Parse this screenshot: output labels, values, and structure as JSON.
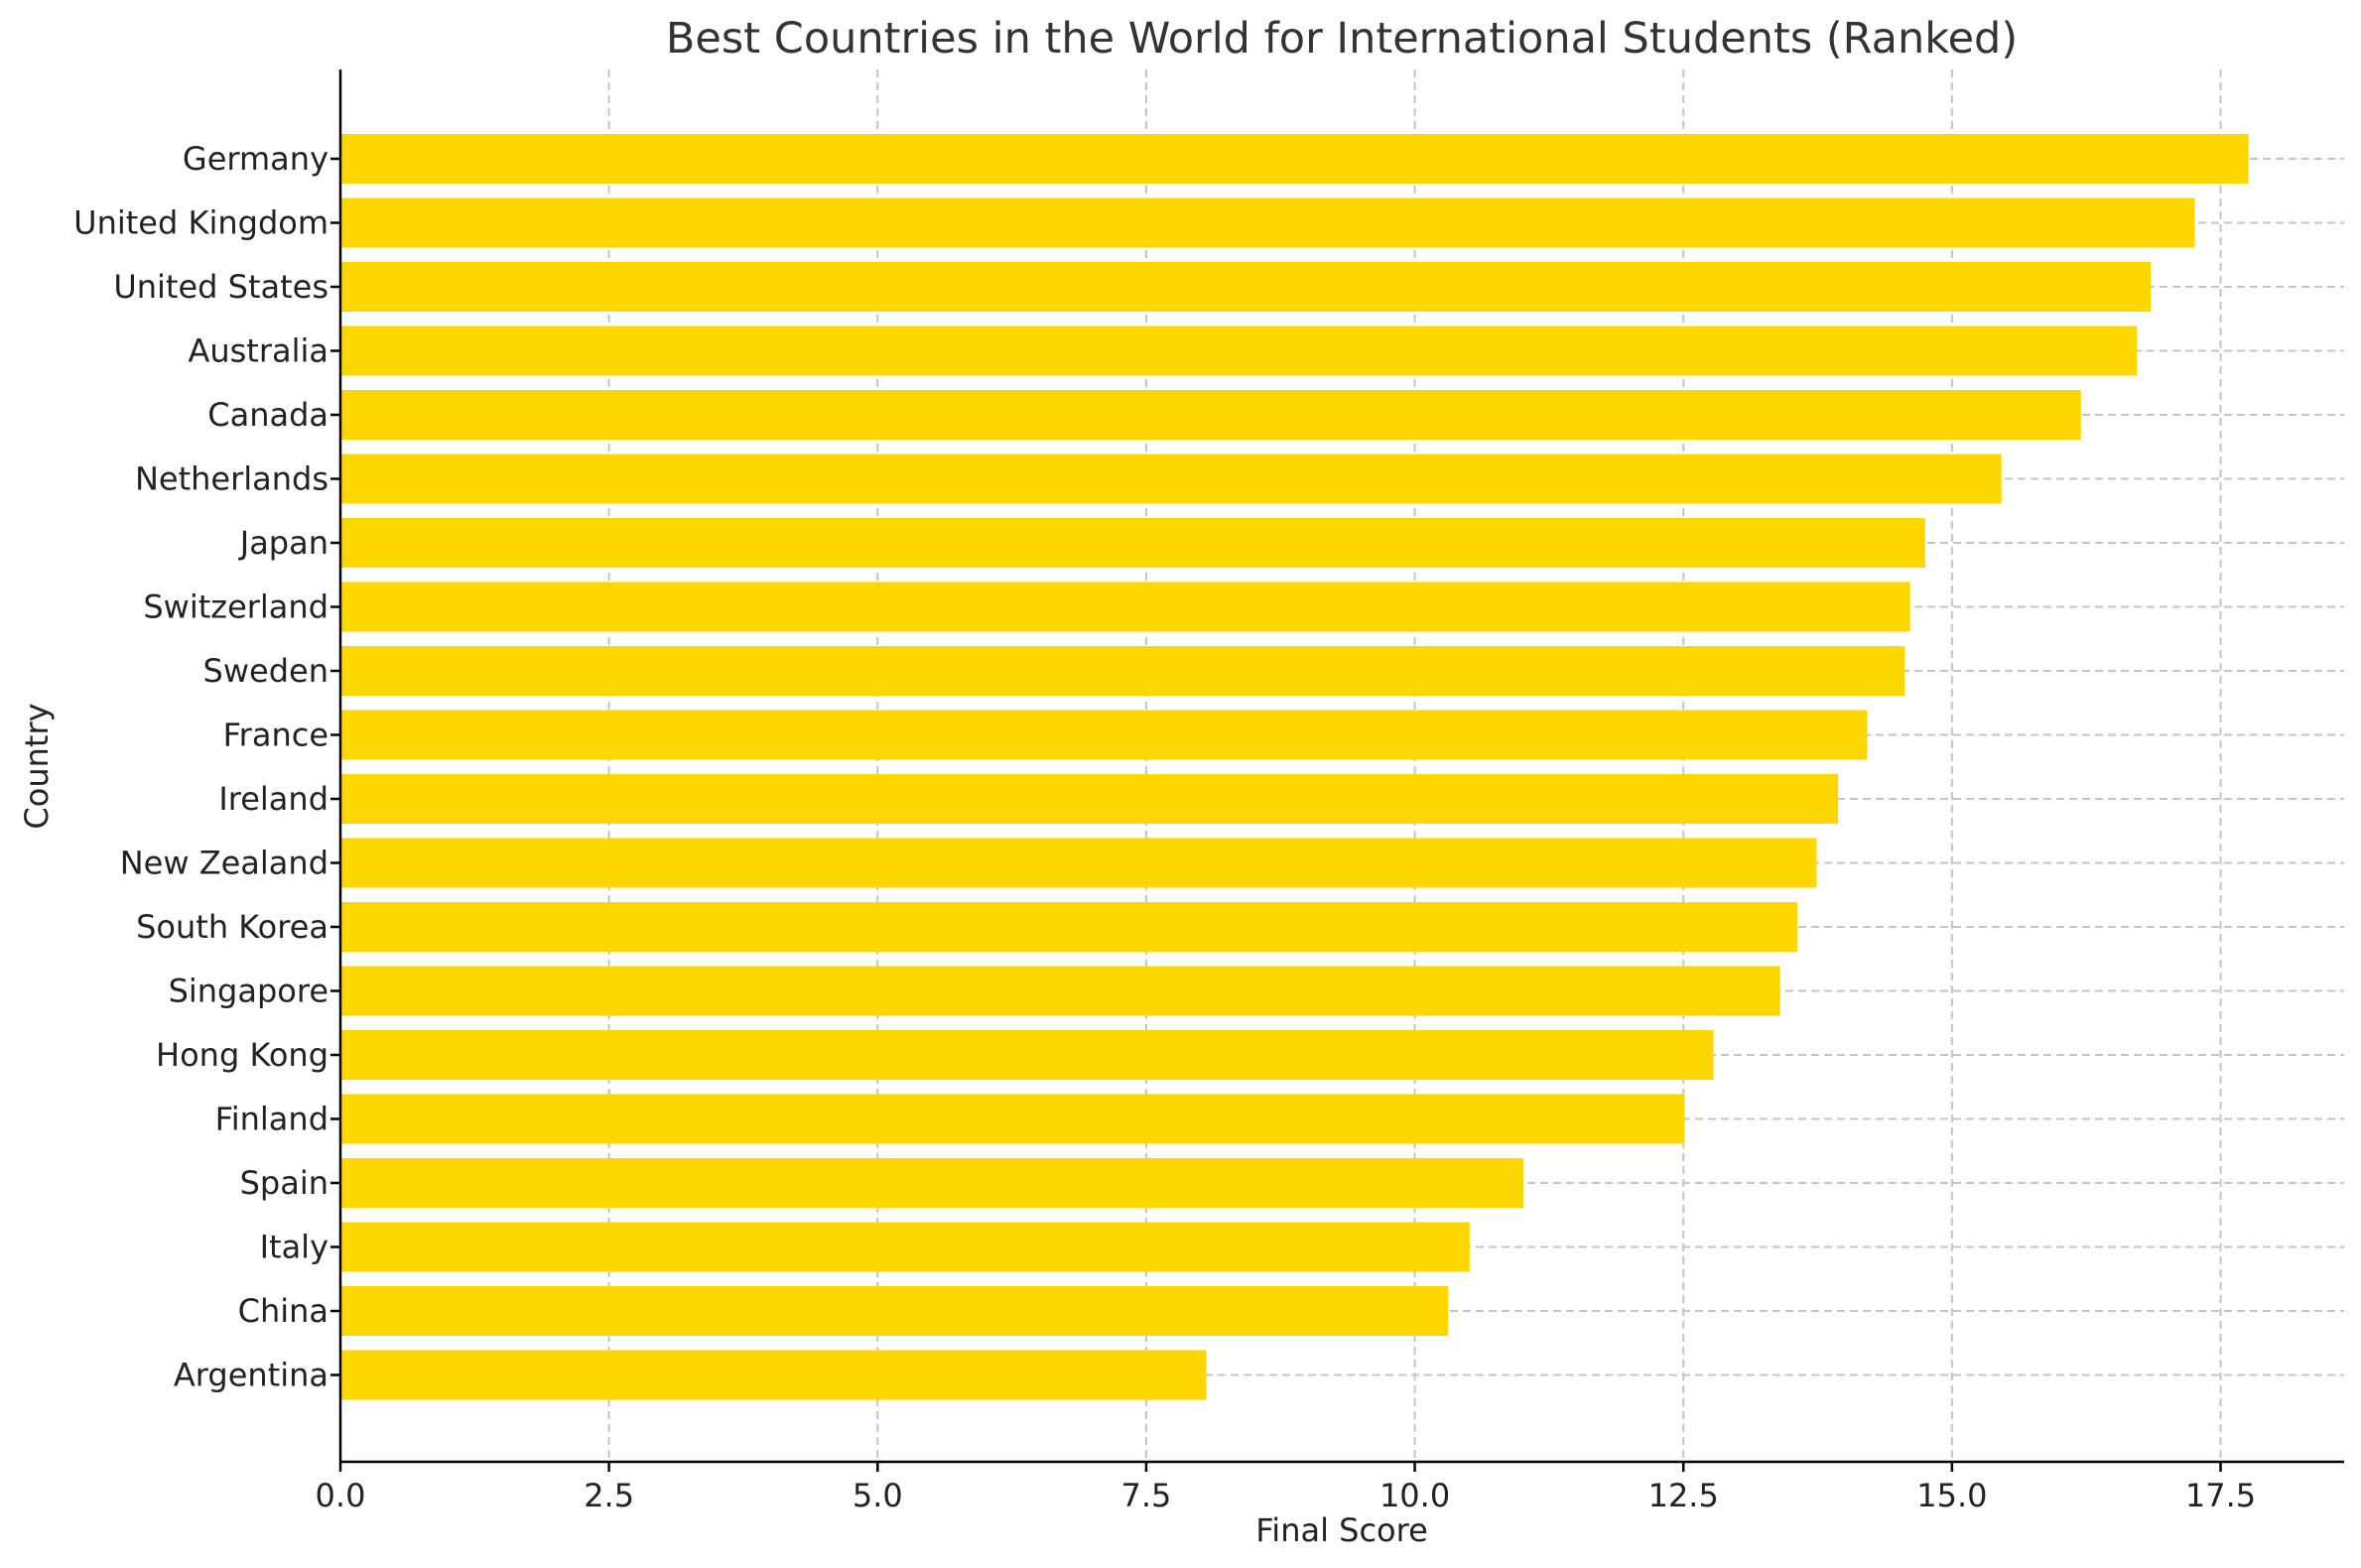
{
  "chart_data": {
    "type": "bar",
    "orientation": "horizontal",
    "title": "Best Countries in the World for International Students (Ranked)",
    "xlabel": "Final Score",
    "ylabel": "Country",
    "xlim": [
      0,
      18.65
    ],
    "xticks": [
      "0.0",
      "2.5",
      "5.0",
      "7.5",
      "10.0",
      "12.5",
      "15.0",
      "17.5"
    ],
    "grid": true,
    "bar_color": "#FFD700",
    "categories": [
      "Germany",
      "United Kingdom",
      "United States",
      "Australia",
      "Canada",
      "Netherlands",
      "Japan",
      "Switzerland",
      "Sweden",
      "France",
      "Ireland",
      "New Zealand",
      "South Korea",
      "Singapore",
      "Hong Kong",
      "Finland",
      "Spain",
      "Italy",
      "China",
      "Argentina"
    ],
    "values": [
      17.76,
      17.26,
      16.85,
      16.72,
      16.2,
      15.46,
      14.75,
      14.61,
      14.56,
      14.21,
      13.94,
      13.74,
      13.56,
      13.4,
      12.78,
      12.51,
      11.01,
      10.51,
      10.31,
      8.06
    ]
  }
}
